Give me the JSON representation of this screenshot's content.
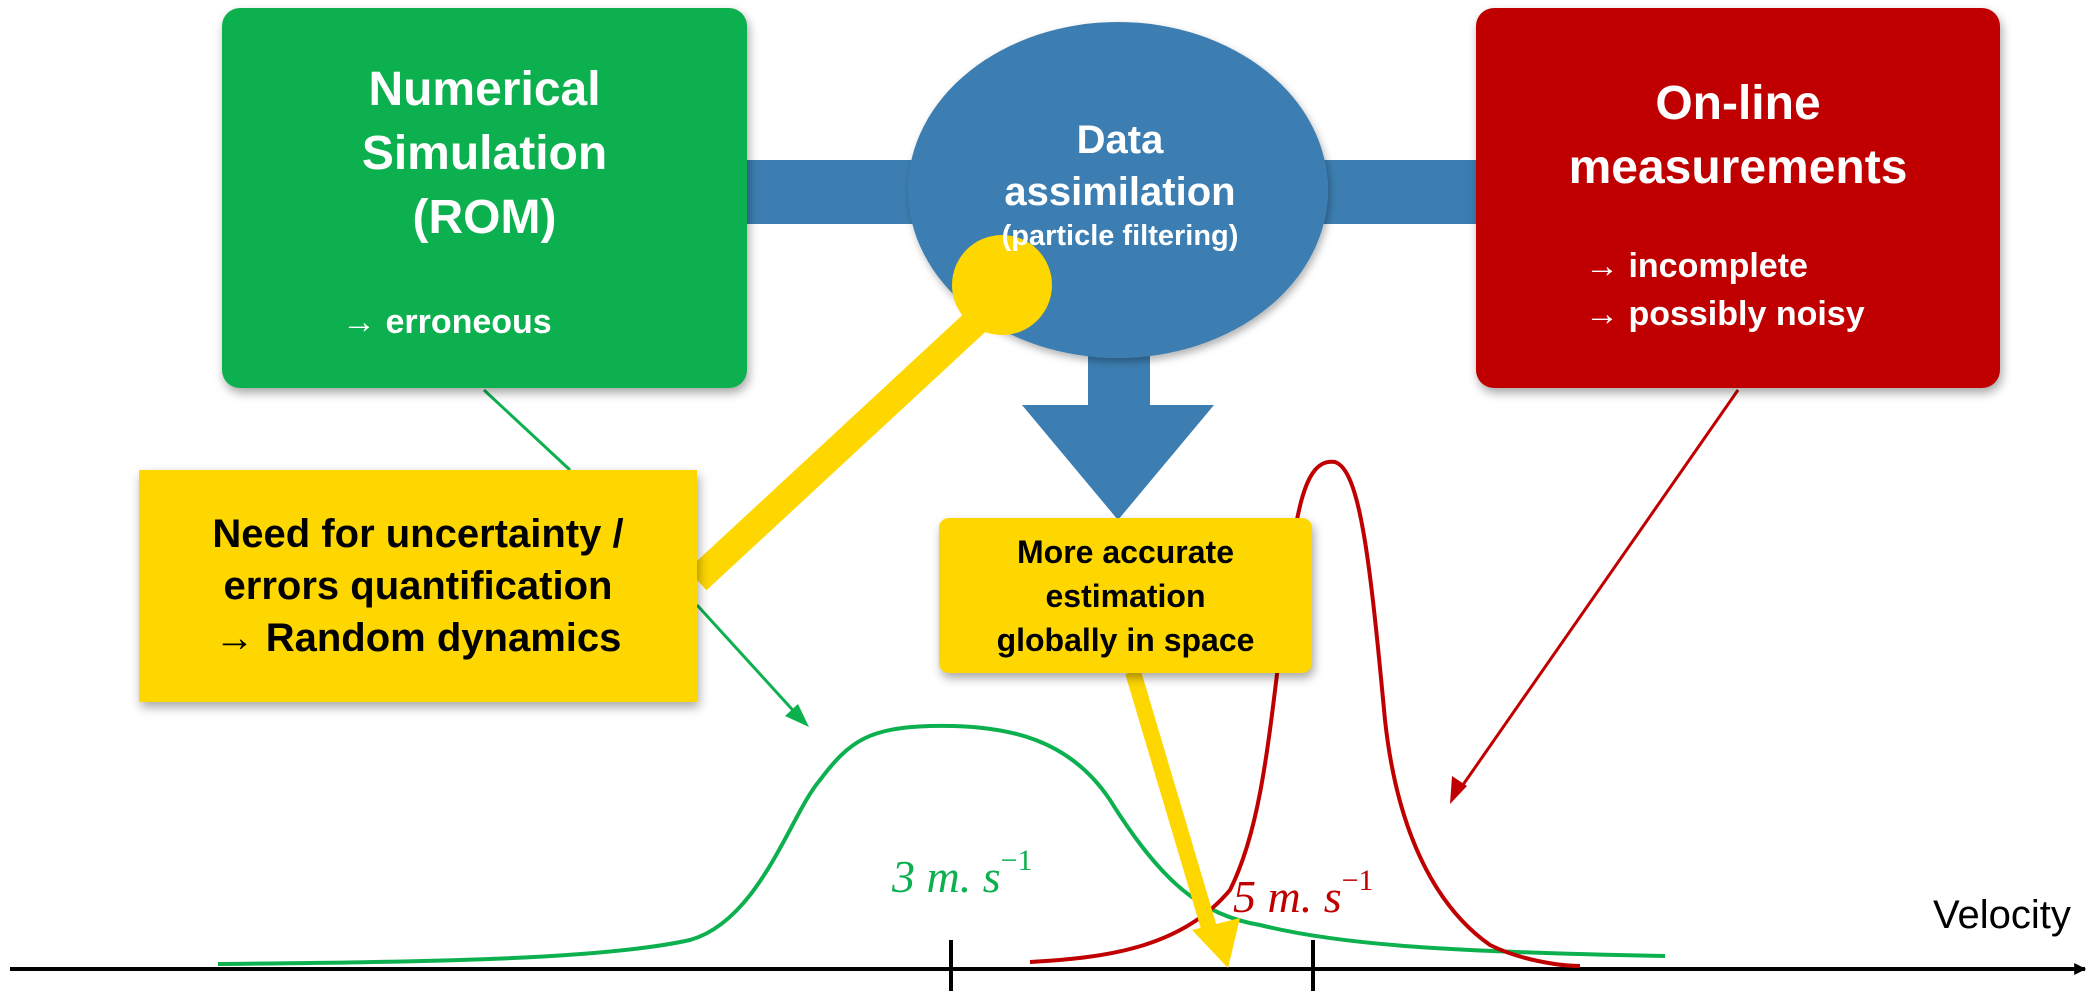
{
  "simulation_box": {
    "title_lines": [
      "Numerical",
      "Simulation",
      "(ROM)"
    ],
    "note": "→ erroneous"
  },
  "data_assimilation": {
    "line1": "Data",
    "line2": "assimilation",
    "line3": "(particle filtering)"
  },
  "measurements_box": {
    "title_lines": [
      "On-line",
      "measurements"
    ],
    "notes": [
      "→ incomplete",
      "→ possibly noisy"
    ]
  },
  "uncertainty_box": {
    "lines": [
      "Need for uncertainty /",
      "errors quantification",
      "→ Random dynamics"
    ]
  },
  "estimation_box": {
    "lines": [
      "More accurate",
      "estimation",
      "globally in space"
    ]
  },
  "velocity_axis": {
    "label": "Velocity",
    "tick_simulation": {
      "value": "3",
      "unit": "m. s",
      "exponent": "−1"
    },
    "tick_measurement": {
      "value": "5",
      "unit": "m. s",
      "exponent": "−1"
    }
  },
  "colors": {
    "green": "#0db04f",
    "red": "#c00000",
    "blue": "#3c7eb2",
    "yellow": "#fed700",
    "axis": "#000000"
  }
}
